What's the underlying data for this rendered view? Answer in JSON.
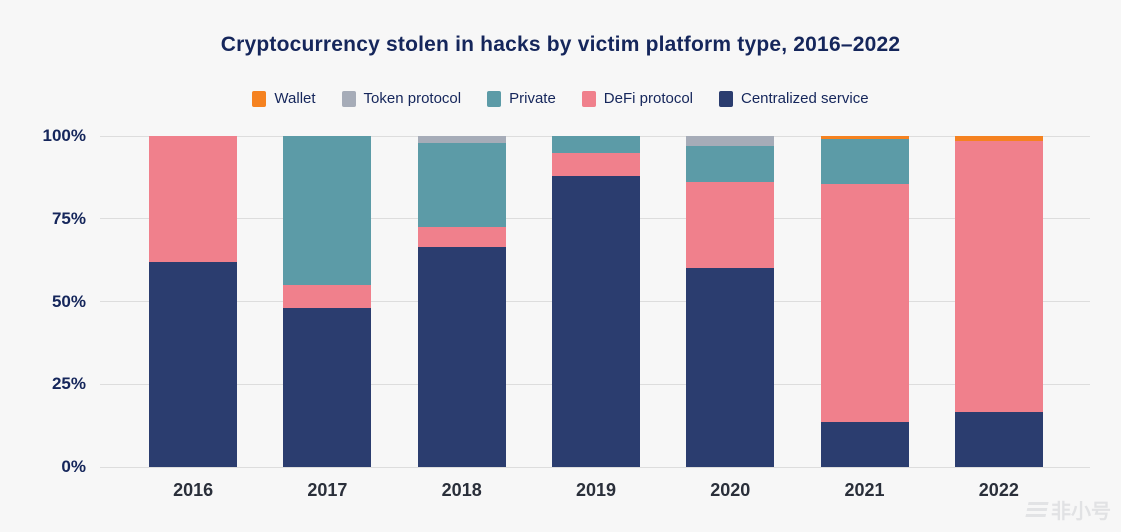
{
  "title": "Cryptocurrency stolen in hacks by victim platform type, 2016–2022",
  "colors": {
    "wallet": "#F58220",
    "token_protocol": "#A6ACB8",
    "private": "#5C9BA7",
    "defi_protocol": "#F0808C",
    "centralized_service": "#2B3D6F",
    "background": "#F7F7F7",
    "gridline": "#DDDDDD",
    "text": "#15265B"
  },
  "legend": [
    {
      "label": "Wallet",
      "color": "#F58220"
    },
    {
      "label": "Token protocol",
      "color": "#A6ACB8"
    },
    {
      "label": "Private",
      "color": "#5C9BA7"
    },
    {
      "label": "DeFi protocol",
      "color": "#F0808C"
    },
    {
      "label": "Centralized service",
      "color": "#2B3D6F"
    }
  ],
  "y_axis": {
    "tick_labels": [
      "100%",
      "75%",
      "50%",
      "25%",
      "0%"
    ],
    "tick_values": [
      100,
      75,
      50,
      25,
      0
    ]
  },
  "watermark": {
    "text": "非小号"
  },
  "chart_data": {
    "type": "bar",
    "stacked": true,
    "title": "Cryptocurrency stolen in hacks by victim platform type, 2016–2022",
    "xlabel": "",
    "ylabel": "",
    "ylim": [
      0,
      100
    ],
    "yticks": [
      0,
      25,
      50,
      75,
      100
    ],
    "ytick_format": "percent",
    "grid": true,
    "legend_position": "top",
    "categories": [
      "2016",
      "2017",
      "2018",
      "2019",
      "2020",
      "2021",
      "2022"
    ],
    "series": [
      {
        "name": "Centralized service",
        "color": "#2B3D6F",
        "values": [
          62,
          48,
          66.5,
          88,
          60,
          13.5,
          16.5
        ]
      },
      {
        "name": "DeFi protocol",
        "color": "#F0808C",
        "values": [
          38,
          7,
          6,
          7,
          26,
          72,
          82
        ]
      },
      {
        "name": "Private",
        "color": "#5C9BA7",
        "values": [
          0,
          45,
          25.5,
          5,
          11,
          13.5,
          0
        ]
      },
      {
        "name": "Token protocol",
        "color": "#A6ACB8",
        "values": [
          0,
          0,
          2,
          0,
          3,
          0,
          0
        ]
      },
      {
        "name": "Wallet",
        "color": "#F58220",
        "values": [
          0,
          0,
          0,
          0,
          0,
          1,
          1.5
        ]
      }
    ]
  }
}
